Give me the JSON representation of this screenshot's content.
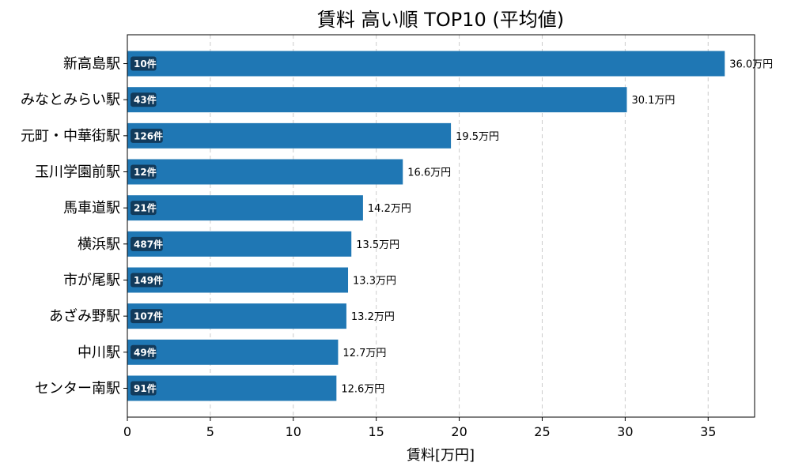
{
  "chart_data": {
    "type": "bar",
    "orientation": "horizontal",
    "title": "賃料 高い順 TOP10 (平均値)",
    "xlabel": "賃料[万円]",
    "ylabel": "",
    "xlim": [
      0,
      37.8
    ],
    "xticks": [
      0,
      5,
      10,
      15,
      20,
      25,
      30,
      35
    ],
    "grid": {
      "x": true,
      "y": false,
      "style": "dashed"
    },
    "categories": [
      "新高島駅",
      "みなとみらい駅",
      "元町・中華街駅",
      "玉川学園前駅",
      "馬車道駅",
      "横浜駅",
      "市が尾駅",
      "あざみ野駅",
      "中川駅",
      "センター南駅"
    ],
    "values": [
      36.0,
      30.1,
      19.5,
      16.6,
      14.2,
      13.5,
      13.3,
      13.2,
      12.7,
      12.6
    ],
    "value_labels": [
      "36.0万円",
      "30.1万円",
      "19.5万円",
      "16.6万円",
      "14.2万円",
      "13.5万円",
      "13.3万円",
      "13.2万円",
      "12.7万円",
      "12.6万円"
    ],
    "count_labels": [
      "10件",
      "43件",
      "126件",
      "12件",
      "21件",
      "487件",
      "149件",
      "107件",
      "49件",
      "91件"
    ],
    "colors": {
      "bar": "#1f77b4",
      "badge": "#123b5c",
      "grid": "#cccccc",
      "axis": "#000000"
    }
  }
}
